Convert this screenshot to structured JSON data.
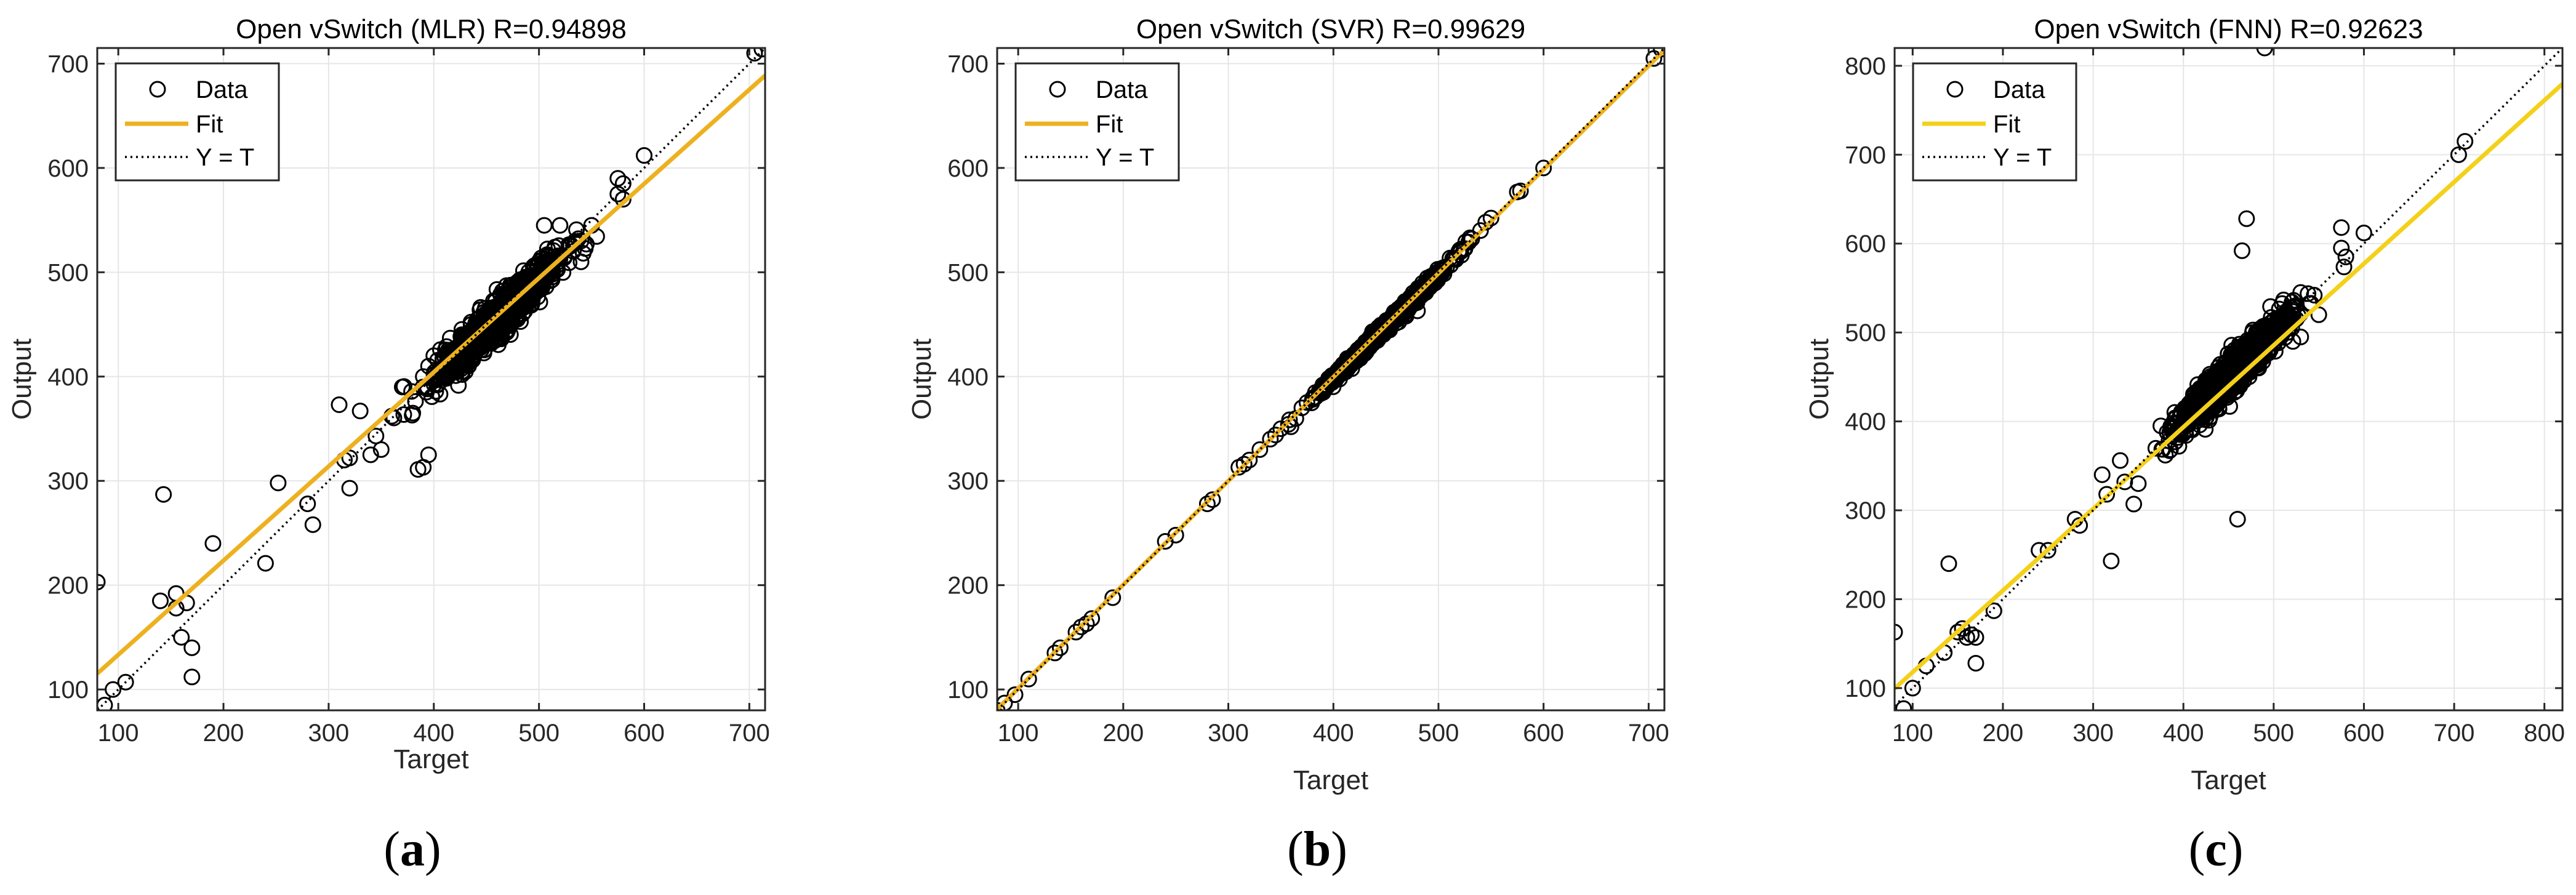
{
  "chart_data": [
    {
      "type": "scatter",
      "title": "Open vSwitch (MLR) R=0.94898",
      "xlabel": "Target",
      "ylabel": "Output",
      "xlim": [
        80,
        715
      ],
      "ylim": [
        80,
        715
      ],
      "xticks": [
        100,
        200,
        300,
        400,
        500,
        600,
        700
      ],
      "yticks": [
        100,
        200,
        300,
        400,
        500,
        600,
        700
      ],
      "grid": true,
      "legend": {
        "location": "top-left",
        "entries": [
          "Data",
          "Fit",
          "Y = T"
        ]
      },
      "fit": {
        "slope": 0.903,
        "intercept": 43,
        "color": "#EDB120"
      },
      "cloud": {
        "center": [
          460,
          455
        ],
        "spread_x": 28,
        "rx": 9,
        "count": 1100
      },
      "series": [
        {
          "name": "Data",
          "points": [
            [
              80,
              203
            ],
            [
              87,
              85
            ],
            [
              95,
              100
            ],
            [
              107,
              107
            ],
            [
              140,
              185
            ],
            [
              143,
              287
            ],
            [
              155,
              192
            ],
            [
              155,
              178
            ],
            [
              160,
              150
            ],
            [
              165,
              183
            ],
            [
              170,
              140
            ],
            [
              170,
              112
            ],
            [
              190,
              240
            ],
            [
              240,
              221
            ],
            [
              252,
              298
            ],
            [
              280,
              278
            ],
            [
              285,
              258
            ],
            [
              310,
              373
            ],
            [
              315,
              320
            ],
            [
              320,
              322
            ],
            [
              320,
              293
            ],
            [
              330,
              367
            ],
            [
              340,
              325
            ],
            [
              345,
              343
            ],
            [
              350,
              330
            ],
            [
              360,
              362
            ],
            [
              370,
              390
            ],
            [
              380,
              365
            ],
            [
              385,
              311
            ],
            [
              390,
              313
            ],
            [
              395,
              325
            ],
            [
              390,
              400
            ],
            [
              395,
              410
            ],
            [
              400,
              420
            ],
            [
              505,
              545
            ],
            [
              520,
              545
            ],
            [
              520,
              515
            ],
            [
              530,
              525
            ],
            [
              540,
              510
            ],
            [
              540,
              530
            ],
            [
              545,
              527
            ],
            [
              550,
              545
            ],
            [
              575,
              590
            ],
            [
              575,
              575
            ],
            [
              580,
              585
            ],
            [
              580,
              570
            ],
            [
              600,
              612
            ],
            [
              705,
              710
            ],
            [
              712,
              714
            ]
          ]
        }
      ]
    },
    {
      "type": "scatter",
      "title": "Open vSwitch (SVR) R=0.99629",
      "xlabel": "Target",
      "ylabel": "Output",
      "xlim": [
        80,
        715
      ],
      "ylim": [
        80,
        715
      ],
      "xticks": [
        100,
        200,
        300,
        400,
        500,
        600,
        700
      ],
      "yticks": [
        100,
        200,
        300,
        400,
        500,
        600,
        700
      ],
      "grid": true,
      "legend": {
        "location": "top-left",
        "entries": [
          "Data",
          "Fit",
          "Y = T"
        ]
      },
      "fit": {
        "slope": 0.995,
        "intercept": 1.5,
        "color": "#EDB120"
      },
      "cloud": {
        "center": [
          450,
          448
        ],
        "spread_x": 28,
        "rx": 2.5,
        "count": 900
      },
      "series": [
        {
          "name": "Data",
          "points": [
            [
              80,
              80
            ],
            [
              87,
              87
            ],
            [
              97,
              95
            ],
            [
              110,
              110
            ],
            [
              135,
              135
            ],
            [
              140,
              140
            ],
            [
              155,
              155
            ],
            [
              160,
              160
            ],
            [
              165,
              163
            ],
            [
              170,
              168
            ],
            [
              190,
              188
            ],
            [
              240,
              242
            ],
            [
              250,
              248
            ],
            [
              280,
              278
            ],
            [
              285,
              282
            ],
            [
              310,
              313
            ],
            [
              315,
              316
            ],
            [
              320,
              320
            ],
            [
              330,
              330
            ],
            [
              340,
              340
            ],
            [
              345,
              344
            ],
            [
              350,
              350
            ],
            [
              370,
              370
            ],
            [
              380,
              378
            ],
            [
              390,
              392
            ],
            [
              395,
              396
            ],
            [
              420,
              415
            ],
            [
              480,
              463
            ],
            [
              520,
              520
            ],
            [
              530,
              533
            ],
            [
              540,
              540
            ],
            [
              545,
              548
            ],
            [
              550,
              552
            ],
            [
              575,
              577
            ],
            [
              578,
              578
            ],
            [
              600,
              600
            ],
            [
              705,
              705
            ],
            [
              712,
              714
            ]
          ]
        }
      ]
    },
    {
      "type": "scatter",
      "title": "Open vSwitch (FNN) R=0.92623",
      "xlabel": "Target",
      "ylabel": "Output",
      "xlim": [
        80,
        820
      ],
      "ylim": [
        75,
        820
      ],
      "xticks": [
        100,
        200,
        300,
        400,
        500,
        600,
        700,
        800
      ],
      "yticks": [
        100,
        200,
        300,
        400,
        500,
        600,
        700,
        800
      ],
      "grid": true,
      "legend": {
        "location": "top-left",
        "entries": [
          "Data",
          "Fit",
          "Y = T"
        ]
      },
      "fit": {
        "slope": 0.919,
        "intercept": 26,
        "color": "#F4D01A"
      },
      "cloud": {
        "center": [
          455,
          455
        ],
        "spread_x": 30,
        "rx": 10,
        "count": 1100
      },
      "series": [
        {
          "name": "Data",
          "points": [
            [
              80,
              163
            ],
            [
              90,
              77
            ],
            [
              100,
              100
            ],
            [
              115,
              125
            ],
            [
              135,
              140
            ],
            [
              140,
              240
            ],
            [
              150,
              163
            ],
            [
              155,
              167
            ],
            [
              160,
              157
            ],
            [
              165,
              160
            ],
            [
              170,
              157
            ],
            [
              170,
              128
            ],
            [
              190,
              187
            ],
            [
              240,
              255
            ],
            [
              250,
              255
            ],
            [
              280,
              290
            ],
            [
              285,
              283
            ],
            [
              310,
              340
            ],
            [
              315,
              318
            ],
            [
              320,
              243
            ],
            [
              330,
              356
            ],
            [
              335,
              332
            ],
            [
              345,
              307
            ],
            [
              350,
              330
            ],
            [
              375,
              395
            ],
            [
              380,
              362
            ],
            [
              395,
              372
            ],
            [
              460,
              290
            ],
            [
              465,
              592
            ],
            [
              470,
              628
            ],
            [
              520,
              505
            ],
            [
              525,
              515
            ],
            [
              530,
              495
            ],
            [
              530,
              545
            ],
            [
              545,
              542
            ],
            [
              550,
              520
            ],
            [
              575,
              618
            ],
            [
              575,
              595
            ],
            [
              580,
              585
            ],
            [
              600,
              612
            ],
            [
              705,
              700
            ],
            [
              712,
              715
            ],
            [
              490,
              820
            ]
          ]
        }
      ]
    }
  ],
  "captions": {
    "a": "a",
    "b": "b",
    "c": "c"
  },
  "colors": {
    "axis": "#262626",
    "grid": "#e6e6e6",
    "marker": "#000000",
    "identity": "#000000"
  }
}
